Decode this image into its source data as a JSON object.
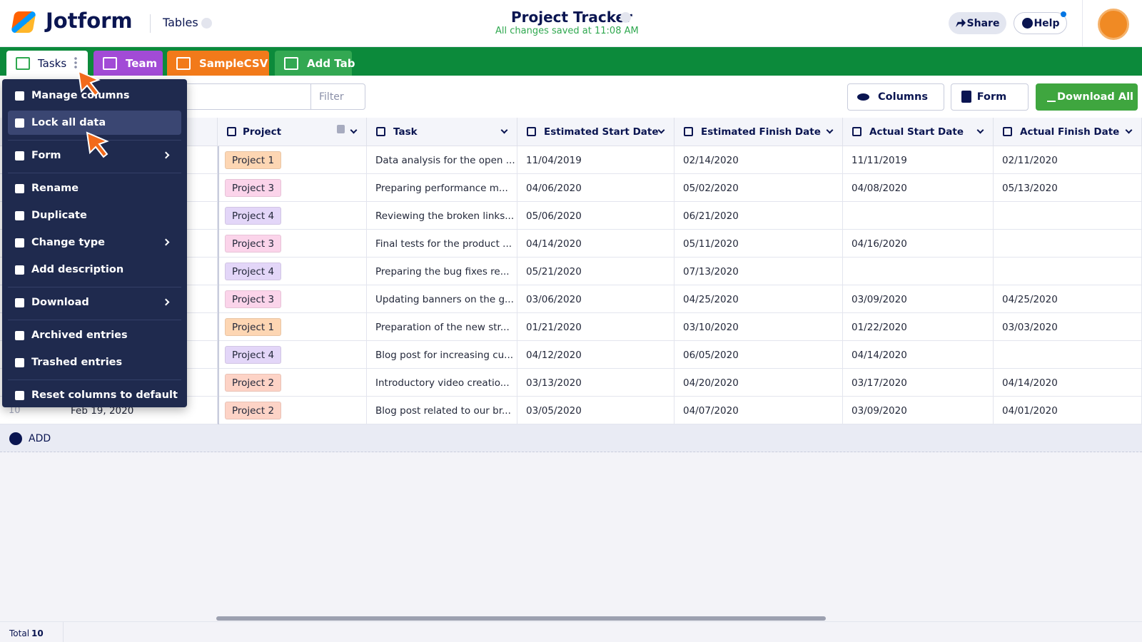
{
  "header": {
    "logo": "Jotform",
    "app": "Tables",
    "title": "Project Tracker",
    "status": "All changes saved at 11:08 AM",
    "share": "Share",
    "help": "Help"
  },
  "tabs": [
    {
      "label": "Tasks",
      "color": "#ffffff"
    },
    {
      "label": "Team",
      "color": "#a24bd6"
    },
    {
      "label": "SampleCSV",
      "color": "#f27a1a"
    },
    {
      "label": "Add Tab",
      "color": "#33a852"
    }
  ],
  "toolbar": {
    "filter": "Filter",
    "columns": "Columns",
    "form": "Form",
    "download": "Download All"
  },
  "menu": {
    "groups": [
      [
        "Manage columns",
        "Lock all data"
      ],
      [
        "Form"
      ],
      [
        "Rename",
        "Duplicate",
        "Change type",
        "Add description"
      ],
      [
        "Download"
      ],
      [
        "Archived entries",
        "Trashed entries"
      ],
      [
        "Reset columns to default"
      ]
    ],
    "submenu": [
      [
        false,
        false
      ],
      [
        true
      ],
      [
        false,
        false,
        true,
        false
      ],
      [
        true
      ],
      [
        false,
        false
      ],
      [
        false
      ]
    ],
    "active_group": 0,
    "active_index": 1
  },
  "table": {
    "columns": [
      "Project",
      "Task",
      "Estimated Start Date",
      "Estimated Finish Date",
      "Actual Start Date",
      "Actual Finish Date"
    ],
    "rows": [
      [
        "Project 1",
        "Data analysis for the open ...",
        "11/04/2019",
        "02/14/2020",
        "11/11/2019",
        "02/11/2020"
      ],
      [
        "Project 3",
        "Preparing performance m...",
        "04/06/2020",
        "05/02/2020",
        "04/08/2020",
        "05/13/2020"
      ],
      [
        "Project 4",
        "Reviewing the broken links...",
        "05/06/2020",
        "06/21/2020",
        null,
        null
      ],
      [
        "Project 3",
        "Final tests for the product ...",
        "04/14/2020",
        "05/11/2020",
        "04/16/2020",
        null
      ],
      [
        "Project 4",
        "Preparing the bug fixes re...",
        "05/21/2020",
        "07/13/2020",
        null,
        null
      ],
      [
        "Project 3",
        "Updating banners on the g...",
        "03/06/2020",
        "04/25/2020",
        "03/09/2020",
        "04/25/2020"
      ],
      [
        "Project 1",
        "Preparation of the new str...",
        "01/21/2020",
        "03/10/2020",
        "01/22/2020",
        "03/03/2020"
      ],
      [
        "Project 4",
        "Blog post for increasing cu...",
        "04/12/2020",
        "06/05/2020",
        "04/14/2020",
        null
      ],
      [
        "Project 2",
        "Introductory video creatio...",
        "03/13/2020",
        "04/20/2020",
        "03/17/2020",
        "04/14/2020"
      ],
      [
        "Project 2",
        "Blog post related to our br...",
        "03/05/2020",
        "04/07/2020",
        "03/09/2020",
        "04/01/2020"
      ]
    ],
    "project_colors": {
      "Project 1": "#fdd6b3",
      "Project 2": "#fdd3c6",
      "Project 3": "#fbd4ea",
      "Project 4": "#e3d6f8"
    },
    "partial_row": {
      "number": 10,
      "date": "Feb 19, 2020"
    },
    "add": "ADD"
  },
  "footer": {
    "label": "Total",
    "count": 10
  }
}
